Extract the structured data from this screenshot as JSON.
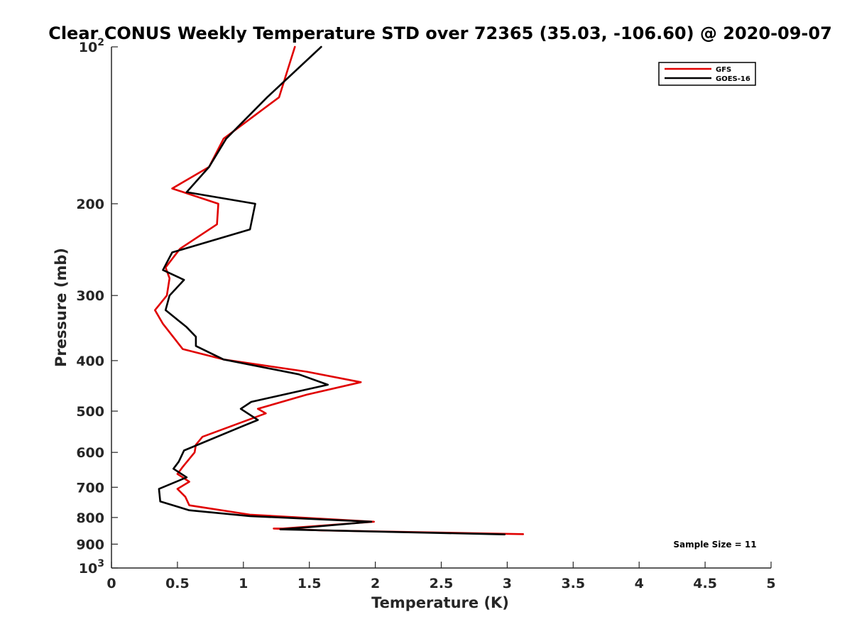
{
  "chart_data": {
    "type": "line",
    "title": "Clear CONUS Weekly Temperature STD over 72365 (35.03, -106.60) @ 2020-09-07",
    "xlabel": "Temperature (K)",
    "ylabel": "Pressure (mb)",
    "xlim": [
      0,
      5
    ],
    "ylim": [
      100,
      1000
    ],
    "y_scale": "log",
    "y_reversed": true,
    "x_ticks": [
      {
        "value": 0,
        "label": "0"
      },
      {
        "value": 0.5,
        "label": "0.5"
      },
      {
        "value": 1,
        "label": "1"
      },
      {
        "value": 1.5,
        "label": "1.5"
      },
      {
        "value": 2,
        "label": "2"
      },
      {
        "value": 2.5,
        "label": "2.5"
      },
      {
        "value": 3,
        "label": "3"
      },
      {
        "value": 3.5,
        "label": "3.5"
      },
      {
        "value": 4,
        "label": "4"
      },
      {
        "value": 4.5,
        "label": "4.5"
      },
      {
        "value": 5,
        "label": "5"
      }
    ],
    "y_ticks": [
      {
        "value": 100,
        "label": "10",
        "sup": "2"
      },
      {
        "value": 200,
        "label": "200"
      },
      {
        "value": 300,
        "label": "300"
      },
      {
        "value": 400,
        "label": "400"
      },
      {
        "value": 500,
        "label": "500"
      },
      {
        "value": 600,
        "label": "600"
      },
      {
        "value": 700,
        "label": "700"
      },
      {
        "value": 800,
        "label": "800"
      },
      {
        "value": 900,
        "label": "900"
      },
      {
        "value": 1000,
        "label": "10",
        "sup": "3"
      }
    ],
    "grid": false,
    "legend_position": "top-right",
    "series": [
      {
        "name": "GFS",
        "color": "#e00000",
        "points": [
          [
            1.39,
            100
          ],
          [
            1.27,
            125
          ],
          [
            0.85,
            150
          ],
          [
            0.74,
            170
          ],
          [
            0.46,
            187
          ],
          [
            0.81,
            200
          ],
          [
            0.8,
            219
          ],
          [
            0.52,
            244
          ],
          [
            0.41,
            265
          ],
          [
            0.44,
            278
          ],
          [
            0.42,
            300
          ],
          [
            0.33,
            320
          ],
          [
            0.39,
            340
          ],
          [
            0.54,
            380
          ],
          [
            0.85,
            398
          ],
          [
            1.48,
            420
          ],
          [
            1.89,
            440
          ],
          [
            1.48,
            465
          ],
          [
            1.11,
            495
          ],
          [
            1.17,
            505
          ],
          [
            0.69,
            560
          ],
          [
            0.64,
            580
          ],
          [
            0.63,
            600
          ],
          [
            0.54,
            640
          ],
          [
            0.5,
            660
          ],
          [
            0.59,
            683
          ],
          [
            0.5,
            705
          ],
          [
            0.56,
            730
          ],
          [
            0.59,
            758
          ],
          [
            1.05,
            790
          ],
          [
            1.99,
            815
          ],
          [
            1.3,
            840
          ],
          [
            1.23,
            840
          ],
          [
            1.6,
            847
          ],
          [
            3.12,
            861
          ]
        ]
      },
      {
        "name": "GOES-16",
        "color": "#000000",
        "points": [
          [
            1.59,
            100
          ],
          [
            1.18,
            125
          ],
          [
            0.87,
            150
          ],
          [
            0.74,
            170
          ],
          [
            0.57,
            190
          ],
          [
            1.09,
            200
          ],
          [
            1.05,
            224
          ],
          [
            0.46,
            248
          ],
          [
            0.39,
            268
          ],
          [
            0.55,
            280
          ],
          [
            0.44,
            300
          ],
          [
            0.41,
            320
          ],
          [
            0.57,
            345
          ],
          [
            0.64,
            360
          ],
          [
            0.64,
            375
          ],
          [
            0.85,
            398
          ],
          [
            1.42,
            425
          ],
          [
            1.64,
            445
          ],
          [
            1.06,
            480
          ],
          [
            0.98,
            495
          ],
          [
            1.11,
            520
          ],
          [
            0.99,
            535
          ],
          [
            0.55,
            595
          ],
          [
            0.51,
            625
          ],
          [
            0.47,
            645
          ],
          [
            0.57,
            670
          ],
          [
            0.36,
            705
          ],
          [
            0.37,
            745
          ],
          [
            0.59,
            775
          ],
          [
            1.05,
            795
          ],
          [
            1.97,
            815
          ],
          [
            1.5,
            835
          ],
          [
            1.28,
            843
          ],
          [
            2.98,
            862
          ]
        ]
      }
    ],
    "annotations": [
      {
        "text": "Sample Size = 11",
        "position": "bottom-right"
      }
    ]
  }
}
